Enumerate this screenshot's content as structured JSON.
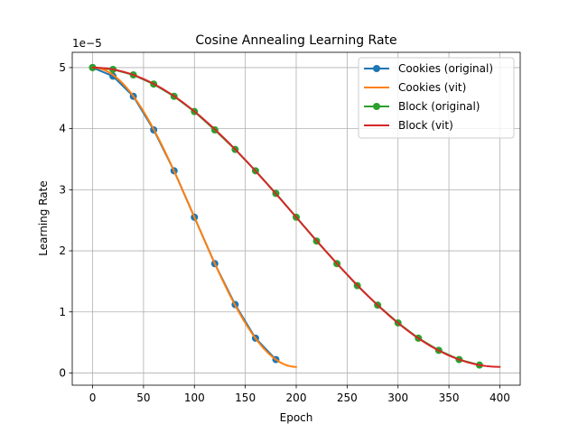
{
  "chart_data": {
    "type": "line",
    "title": "Cosine Annealing Learning Rate",
    "xlabel": "Epoch",
    "ylabel": "Learning Rate",
    "y_scale_label": "1e−5",
    "xlim": [
      -20,
      420
    ],
    "ylim": [
      -0.2,
      5.25
    ],
    "x_ticks": [
      0,
      50,
      100,
      150,
      200,
      250,
      300,
      350,
      400
    ],
    "y_ticks": [
      0,
      1,
      2,
      3,
      4,
      5
    ],
    "grid": true,
    "legend_position": "top-right",
    "series": [
      {
        "name": "Cookies (original)",
        "color": "#1f77b4",
        "style": "line-marker",
        "x": [
          0,
          20,
          40,
          60,
          80,
          100,
          120,
          140,
          160,
          180
        ],
        "y": [
          5.0,
          4.86,
          4.53,
          3.98,
          3.31,
          2.55,
          1.79,
          1.12,
          0.57,
          0.22
        ]
      },
      {
        "name": "Cookies (vit)",
        "color": "#ff7f0e",
        "style": "line",
        "cosine": {
          "eta_max": 5.0,
          "eta_min": 0.1,
          "T": 200,
          "steps": 100
        }
      },
      {
        "name": "Block (original)",
        "color": "#2ca02c",
        "style": "line-marker",
        "x": [
          0,
          20,
          40,
          60,
          80,
          100,
          120,
          140,
          160,
          180,
          200,
          220,
          240,
          260,
          280,
          300,
          320,
          340,
          360,
          380
        ],
        "y": [
          5.0,
          4.97,
          4.88,
          4.73,
          4.53,
          4.28,
          3.98,
          3.66,
          3.31,
          2.94,
          2.55,
          2.16,
          1.79,
          1.43,
          1.11,
          0.82,
          0.57,
          0.37,
          0.22,
          0.13
        ]
      },
      {
        "name": "Block (vit)",
        "color": "#d62728",
        "style": "line",
        "cosine": {
          "eta_max": 5.0,
          "eta_min": 0.1,
          "T": 400,
          "steps": 200
        }
      }
    ]
  }
}
